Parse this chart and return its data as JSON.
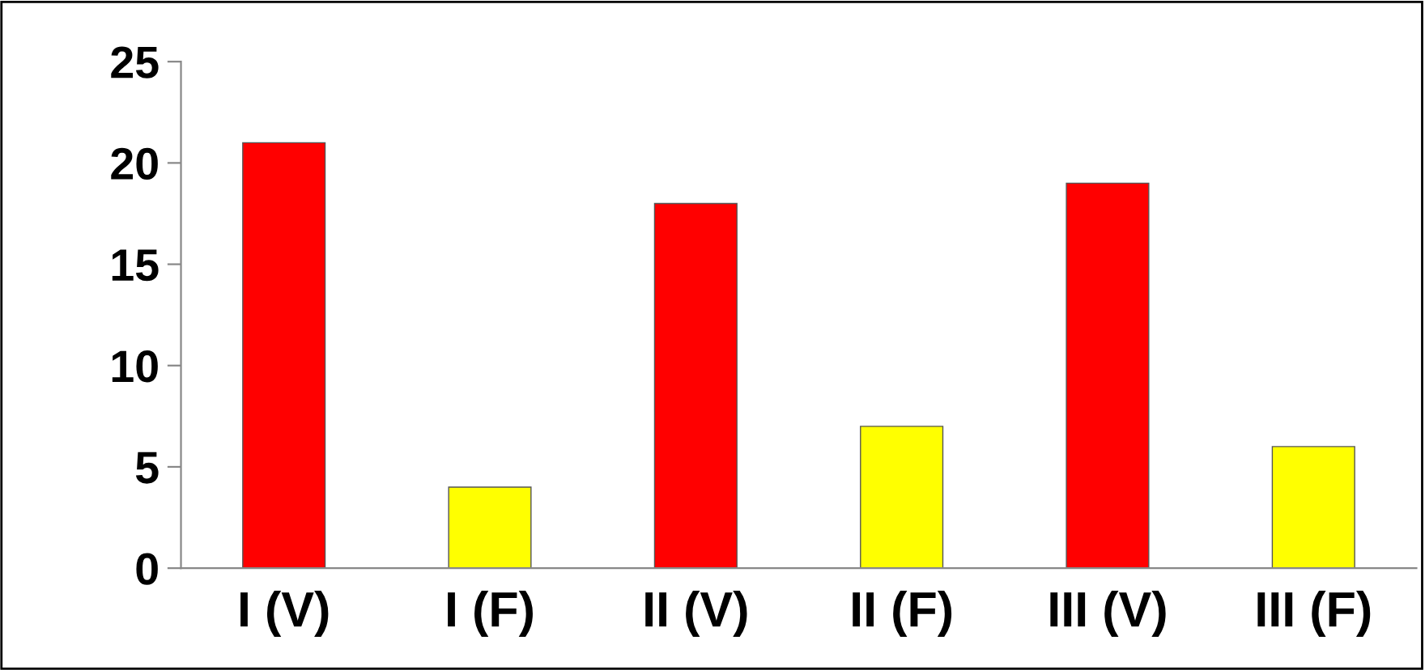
{
  "chart_data": {
    "type": "bar",
    "categories": [
      "I (V)",
      "I (F)",
      "II (V)",
      "II (F)",
      "III (V)",
      "III (F)"
    ],
    "values": [
      21,
      4,
      18,
      7,
      19,
      6
    ],
    "colors": [
      "#ff0000",
      "#ffff00",
      "#ff0000",
      "#ffff00",
      "#ff0000",
      "#ffff00"
    ],
    "ylim": [
      0,
      25
    ],
    "yticks": [
      0,
      5,
      10,
      15,
      20,
      25
    ],
    "grid": false,
    "legend": false
  }
}
